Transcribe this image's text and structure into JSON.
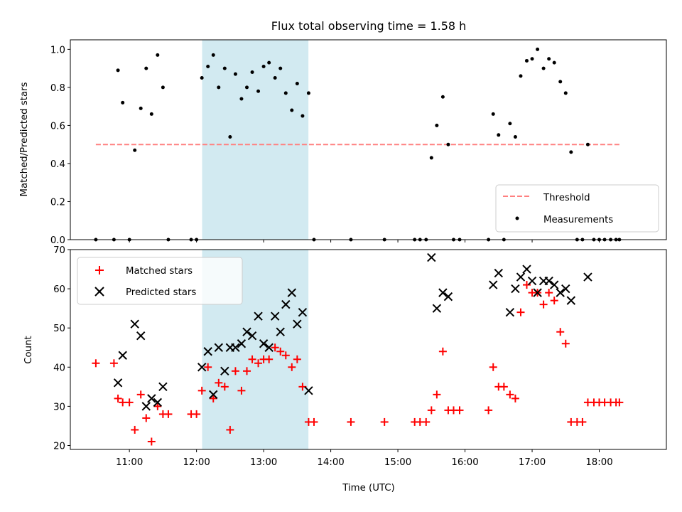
{
  "title": "Flux total observing time = 1.58 h",
  "xlabel": "Time (UTC)",
  "x_ticks": [
    "11:00",
    "12:00",
    "13:00",
    "14:00",
    "15:00",
    "16:00",
    "17:00",
    "18:00"
  ],
  "colors": {
    "shade": "#add8e6",
    "threshold": "#ff8080",
    "measurement": "#000000",
    "matched": "#ff0000",
    "predicted": "#000000"
  },
  "chart_data": [
    {
      "type": "scatter",
      "ylabel": "Matched/Predicted stars",
      "xlim": [
        10.12,
        19.0
      ],
      "ylim": [
        0.0,
        1.05
      ],
      "y_ticks": [
        "0.0",
        "0.2",
        "0.4",
        "0.6",
        "0.8",
        "1.0"
      ],
      "shaded_span": [
        12.083,
        13.667
      ],
      "threshold": {
        "name": "Threshold",
        "value": 0.5,
        "x": [
          10.5,
          18.3
        ]
      },
      "legend": {
        "position": "lower right",
        "entries": [
          "Threshold",
          "Measurements"
        ]
      },
      "series": [
        {
          "name": "Measurements",
          "x": [
            10.5,
            10.77,
            10.83,
            10.9,
            11.0,
            11.08,
            11.17,
            11.25,
            11.33,
            11.42,
            11.5,
            11.58,
            11.92,
            12.0,
            12.08,
            12.17,
            12.25,
            12.33,
            12.42,
            12.5,
            12.58,
            12.67,
            12.75,
            12.83,
            12.92,
            13.0,
            13.08,
            13.17,
            13.25,
            13.33,
            13.42,
            13.5,
            13.58,
            13.67,
            13.75,
            14.3,
            14.8,
            15.25,
            15.33,
            15.42,
            15.5,
            15.58,
            15.67,
            15.75,
            15.83,
            15.92,
            16.35,
            16.42,
            16.5,
            16.58,
            16.67,
            16.75,
            16.83,
            16.92,
            17.0,
            17.08,
            17.17,
            17.25,
            17.33,
            17.42,
            17.5,
            17.58,
            17.67,
            17.75,
            17.83,
            17.92,
            18.0,
            18.08,
            18.17,
            18.25,
            18.3
          ],
          "y": [
            0.0,
            0.0,
            0.89,
            0.72,
            0.0,
            0.47,
            0.69,
            0.9,
            0.66,
            0.97,
            0.8,
            0.0,
            0.0,
            0.0,
            0.85,
            0.91,
            0.97,
            0.8,
            0.9,
            0.54,
            0.87,
            0.74,
            0.8,
            0.88,
            0.78,
            0.91,
            0.93,
            0.85,
            0.9,
            0.77,
            0.68,
            0.82,
            0.65,
            0.77,
            0.0,
            0.0,
            0.0,
            0.0,
            0.0,
            0.0,
            0.43,
            0.6,
            0.75,
            0.5,
            0.0,
            0.0,
            0.0,
            0.66,
            0.55,
            0.0,
            0.61,
            0.54,
            0.86,
            0.94,
            0.95,
            1.0,
            0.9,
            0.95,
            0.93,
            0.83,
            0.77,
            0.46,
            0.0,
            0.0,
            0.5,
            0.0,
            0.0,
            0.0,
            0.0,
            0.0,
            0.0
          ]
        }
      ]
    },
    {
      "type": "scatter",
      "ylabel": "Count",
      "xlabel": "Time (UTC)",
      "xlim": [
        10.12,
        19.0
      ],
      "ylim": [
        19,
        70
      ],
      "y_ticks": [
        "20",
        "30",
        "40",
        "50",
        "60",
        "70"
      ],
      "shaded_span": [
        12.083,
        13.667
      ],
      "legend": {
        "position": "upper left",
        "entries": [
          "Matched stars",
          "Predicted stars"
        ]
      },
      "series": [
        {
          "name": "Matched stars",
          "x": [
            10.5,
            10.77,
            10.83,
            10.9,
            11.0,
            11.08,
            11.17,
            11.25,
            11.33,
            11.42,
            11.5,
            11.58,
            11.92,
            12.0,
            12.08,
            12.17,
            12.25,
            12.33,
            12.42,
            12.5,
            12.58,
            12.67,
            12.75,
            12.83,
            12.92,
            13.0,
            13.08,
            13.17,
            13.25,
            13.33,
            13.42,
            13.5,
            13.58,
            13.67,
            13.75,
            14.3,
            14.8,
            15.25,
            15.33,
            15.42,
            15.5,
            15.58,
            15.67,
            15.75,
            15.83,
            15.92,
            16.35,
            16.42,
            16.5,
            16.58,
            16.67,
            16.75,
            16.83,
            16.92,
            17.0,
            17.08,
            17.17,
            17.25,
            17.33,
            17.42,
            17.5,
            17.58,
            17.67,
            17.75,
            17.83,
            17.92,
            18.0,
            18.08,
            18.17,
            18.25,
            18.3
          ],
          "y": [
            41,
            41,
            32,
            31,
            31,
            24,
            33,
            27,
            21,
            30,
            28,
            28,
            28,
            28,
            34,
            40,
            32,
            36,
            35,
            24,
            39,
            34,
            39,
            42,
            41,
            42,
            42,
            45,
            44,
            43,
            40,
            42,
            35,
            26,
            26,
            26,
            26,
            26,
            26,
            26,
            29,
            33,
            44,
            29,
            29,
            29,
            29,
            40,
            35,
            35,
            33,
            32,
            54,
            61,
            59,
            59,
            56,
            59,
            57,
            49,
            46,
            26,
            26,
            26,
            31,
            31,
            31,
            31,
            31,
            31,
            31
          ]
        },
        {
          "name": "Predicted stars",
          "x": [
            10.83,
            10.9,
            11.08,
            11.17,
            11.25,
            11.33,
            11.42,
            11.5,
            12.08,
            12.17,
            12.25,
            12.33,
            12.42,
            12.5,
            12.58,
            12.67,
            12.75,
            12.83,
            12.92,
            13.0,
            13.08,
            13.17,
            13.25,
            13.33,
            13.42,
            13.5,
            13.58,
            13.67,
            15.5,
            15.58,
            15.67,
            15.75,
            16.42,
            16.5,
            16.67,
            16.75,
            16.83,
            16.92,
            17.0,
            17.08,
            17.17,
            17.25,
            17.33,
            17.42,
            17.5,
            17.58,
            17.83
          ],
          "y": [
            36,
            43,
            51,
            48,
            30,
            32,
            31,
            35,
            40,
            44,
            33,
            45,
            39,
            45,
            45,
            46,
            49,
            48,
            53,
            46,
            45,
            53,
            49,
            56,
            59,
            51,
            54,
            34,
            68,
            55,
            59,
            58,
            61,
            64,
            54,
            60,
            63,
            65,
            62,
            59,
            62,
            62,
            61,
            59,
            60,
            57,
            63
          ]
        }
      ]
    }
  ]
}
